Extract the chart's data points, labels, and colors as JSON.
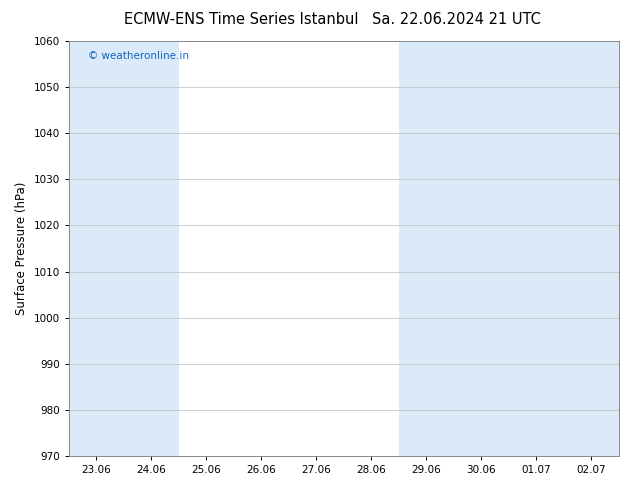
{
  "title_left": "ECMW-ENS Time Series Istanbul",
  "title_right": "Sa. 22.06.2024 21 UTC",
  "ylabel": "Surface Pressure (hPa)",
  "ylim": [
    970,
    1060
  ],
  "yticks": [
    970,
    980,
    990,
    1000,
    1010,
    1020,
    1030,
    1040,
    1050,
    1060
  ],
  "xtick_labels": [
    "23.06",
    "24.06",
    "25.06",
    "26.06",
    "27.06",
    "28.06",
    "29.06",
    "30.06",
    "01.07",
    "02.07"
  ],
  "shaded_bands": [
    {
      "xmin": -0.5,
      "xmax": 0.5
    },
    {
      "xmin": 5.5,
      "xmax": 7.5
    },
    {
      "xmin": 7.5,
      "xmax": 8.5
    },
    {
      "xmin": 8.5,
      "xmax": 9.5
    }
  ],
  "shade_color": "#daeaf8",
  "background_color": "#ffffff",
  "plot_bg_color": "#ffffff",
  "watermark_text": "© weatheronline.in",
  "watermark_color": "#1565c0",
  "title_color": "#000000",
  "axis_label_color": "#000000",
  "tick_color": "#000000",
  "grid_color": "#bbbbbb",
  "title_fontsize": 10.5,
  "tick_fontsize": 7.5,
  "ylabel_fontsize": 8.5
}
